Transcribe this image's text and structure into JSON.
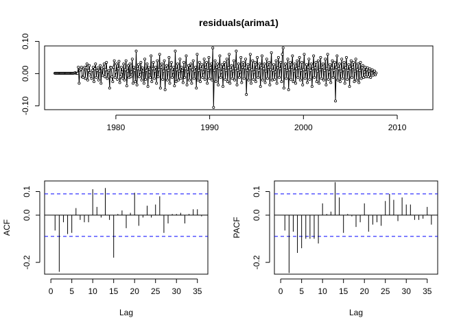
{
  "chart_data": [
    {
      "type": "line",
      "title": "residuals(arima1)",
      "xlabel": "",
      "ylabel": "",
      "xlim": [
        1972.4,
        2013.8
      ],
      "ylim": [
        -0.112,
        0.086
      ],
      "xticks": [
        1980,
        1990,
        2000,
        2010
      ],
      "yticks": [
        -0.1,
        0,
        0.1
      ],
      "ytick_labels": [
        "-0.10",
        "0.00",
        "0.10"
      ],
      "start": 1973.5,
      "frequency": 12,
      "line_color": "#000000",
      "marker": "open-circle",
      "box": true,
      "values": [
        0.001,
        0.001,
        0.001,
        0.001,
        0.001,
        0.001,
        0.001,
        0.001,
        0.001,
        0.001,
        0.001,
        0.001,
        0.001,
        0.001,
        0.001,
        0.001,
        0.001,
        0.001,
        0.001,
        0.001,
        0.001,
        0.001,
        0.001,
        0.001,
        0.001,
        0.002,
        0.003,
        0.001,
        0.001,
        0.001,
        0.02,
        -0.03,
        0.01,
        0.014,
        0.02,
        -0.01,
        -0.012,
        0.015,
        0.02,
        -0.015,
        0.018,
        0.03,
        -0.02,
        0.01,
        0.025,
        0.003,
        -0.008,
        -0.015,
        0.01,
        0.02,
        -0.025,
        0.015,
        0.03,
        -0.012,
        0.01,
        0.018,
        -0.02,
        0.008,
        0.025,
        -0.03,
        0.015,
        -0.005,
        0.02,
        0.03,
        -0.01,
        0.012,
        0.035,
        -0.015,
        0.005,
        0.01,
        -0.045,
        0.02,
        0.018,
        -0.01,
        -0.025,
        0.02,
        0.04,
        -0.012,
        0.005,
        0.03,
        -0.018,
        0.015,
        0.038,
        -0.028,
        -0.01,
        0.02,
        0.005,
        -0.015,
        0.03,
        -0.02,
        0.012,
        0.04,
        -0.038,
        0.008,
        0.025,
        -0.012,
        0.03,
        -0.01,
        0.005,
        0.045,
        -0.03,
        0.02,
        0.01,
        -0.025,
        0.07,
        -0.035,
        0.015,
        0.028,
        -0.01,
        0.005,
        0.035,
        -0.02,
        0.018,
        0.008,
        -0.03,
        0.045,
        -0.018,
        0.01,
        0.03,
        -0.04,
        0.02,
        0.005,
        -0.012,
        0.055,
        -0.025,
        0.015,
        0.035,
        -0.015,
        0.008,
        0.02,
        -0.03,
        0.04,
        -0.01,
        0.012,
        0.06,
        -0.045,
        0.02,
        0.03,
        -0.018,
        0.008,
        0.04,
        -0.05,
        0.015,
        0.025,
        -0.02,
        0.01,
        0.05,
        -0.03,
        0.018,
        0.035,
        -0.012,
        0.005,
        0.02,
        -0.038,
        0.07,
        -0.025,
        0.012,
        0.03,
        -0.02,
        0.008,
        0.045,
        -0.015,
        0.02,
        0.01,
        -0.028,
        0.035,
        -0.012,
        0.015,
        0.055,
        -0.035,
        0.005,
        0.025,
        -0.02,
        0.018,
        0.03,
        -0.03,
        0.012,
        0.04,
        -0.015,
        0.008,
        0.02,
        -0.045,
        0.06,
        -0.02,
        0.01,
        0.035,
        -0.025,
        0.015,
        0.028,
        -0.012,
        0.005,
        0.045,
        -0.018,
        0.02,
        0.035,
        -0.03,
        0.01,
        0.05,
        -0.015,
        0.018,
        0.03,
        -0.02,
        0.08,
        -0.105,
        0.01,
        0.04,
        -0.025,
        0.02,
        0.03,
        -0.035,
        0.015,
        0.055,
        -0.012,
        0.005,
        0.028,
        -0.04,
        0.02,
        0.035,
        -0.018,
        0.01,
        0.045,
        -0.025,
        0.018,
        0.06,
        -0.03,
        0.012,
        0.025,
        -0.015,
        0.008,
        0.04,
        -0.02,
        0.015,
        0.07,
        -0.035,
        0.01,
        0.03,
        -0.012,
        0.005,
        0.05,
        -0.028,
        0.02,
        0.035,
        -0.015,
        0.018,
        0.045,
        -0.065,
        0.01,
        0.028,
        -0.02,
        0.015,
        0.06,
        -0.03,
        0.012,
        0.04,
        -0.018,
        0.005,
        0.035,
        -0.025,
        0.02,
        0.05,
        -0.012,
        0.01,
        0.03,
        -0.04,
        0.018,
        0.055,
        -0.02,
        0.015,
        0.03,
        -0.028,
        0.008,
        0.045,
        -0.015,
        0.02,
        0.035,
        -0.035,
        0.012,
        0.065,
        -0.02,
        0.01,
        0.028,
        -0.018,
        0.005,
        0.04,
        -0.03,
        0.018,
        0.05,
        -0.012,
        0.015,
        0.035,
        -0.025,
        0.06,
        0.08,
        -0.045,
        0.02,
        0.03,
        -0.015,
        0.01,
        0.045,
        -0.05,
        0.012,
        0.035,
        -0.018,
        0.02,
        0.055,
        -0.025,
        0.008,
        0.03,
        -0.03,
        0.015,
        0.04,
        -0.012,
        0.018,
        0.05,
        -0.02,
        0.01,
        0.035,
        -0.035,
        0.012,
        0.06,
        -0.015,
        0.005,
        0.028,
        -0.028,
        0.02,
        0.045,
        -0.018,
        0.01,
        0.03,
        -0.04,
        0.015,
        0.055,
        -0.012,
        0.018,
        0.035,
        -0.025,
        0.008,
        0.04,
        -0.03,
        0.012,
        0.05,
        -0.015,
        0.02,
        0.03,
        -0.02,
        0.01,
        0.045,
        -0.035,
        0.015,
        0.06,
        -0.018,
        0.005,
        0.028,
        -0.028,
        0.018,
        0.04,
        -0.012,
        0.01,
        0.035,
        -0.085,
        0.02,
        0.055,
        -0.02,
        0.015,
        0.03,
        -0.025,
        0.008,
        0.045,
        -0.015,
        0.012,
        0.035,
        -0.03,
        0.018,
        0.05,
        -0.018,
        0.01,
        0.028,
        -0.04,
        0.015,
        0.04,
        -0.012,
        0.02,
        0.035,
        -0.025,
        0.008,
        0.045,
        -0.02,
        0.012,
        0.03,
        -0.028,
        0.01,
        0.035,
        -0.015,
        0.018,
        0.025,
        -0.012,
        0.005,
        0.02,
        -0.01,
        0.012,
        0.018,
        -0.01,
        0.008,
        0.015,
        -0.012,
        0.01,
        0.012,
        -0.005,
        0.006,
        0.008,
        -0.004,
        0.002
      ]
    },
    {
      "type": "bar",
      "title": "",
      "xlabel": "Lag",
      "ylabel": "ACF",
      "xlim": [
        -1.5,
        37.5
      ],
      "ylim": [
        -0.25,
        0.145
      ],
      "xticks": [
        0,
        5,
        10,
        15,
        20,
        25,
        30,
        35
      ],
      "yticks": [
        -0.2,
        0.0,
        0.1
      ],
      "ytick_labels": [
        "-0.2",
        "0.0",
        "0.1"
      ],
      "ci_bounds": [
        0.09,
        -0.09
      ],
      "ci_color": "#0000ff",
      "lags": [
        1,
        2,
        3,
        4,
        5,
        6,
        7,
        8,
        9,
        10,
        11,
        12,
        13,
        14,
        15,
        16,
        17,
        18,
        19,
        20,
        21,
        22,
        23,
        24,
        25,
        26,
        27,
        28,
        29,
        30,
        31,
        32,
        33,
        34,
        35,
        36
      ],
      "values": [
        -0.065,
        -0.24,
        -0.03,
        -0.08,
        -0.075,
        0.03,
        -0.02,
        -0.03,
        -0.03,
        0.11,
        0.035,
        -0.01,
        0.115,
        -0.02,
        -0.18,
        0.005,
        0.02,
        -0.055,
        0.01,
        0.095,
        -0.045,
        -0.01,
        0.04,
        -0.01,
        0.045,
        0.08,
        -0.075,
        -0.035,
        0.005,
        0.005,
        0.01,
        -0.035,
        0.005,
        0.025,
        0.025,
        -0.005
      ]
    },
    {
      "type": "bar",
      "title": "",
      "xlabel": "Lag",
      "ylabel": "PACF",
      "xlim": [
        -1.5,
        37.5
      ],
      "ylim": [
        -0.25,
        0.145
      ],
      "xticks": [
        0,
        5,
        10,
        15,
        20,
        25,
        30,
        35
      ],
      "yticks": [
        -0.2,
        0.0,
        0.1
      ],
      "ytick_labels": [
        "-0.2",
        "0.0",
        "0.1"
      ],
      "ci_bounds": [
        0.09,
        -0.09
      ],
      "ci_color": "#0000ff",
      "lags": [
        1,
        2,
        3,
        4,
        5,
        6,
        7,
        8,
        9,
        10,
        11,
        12,
        13,
        14,
        15,
        16,
        17,
        18,
        19,
        20,
        21,
        22,
        23,
        24,
        25,
        26,
        27,
        28,
        29,
        30,
        31,
        32,
        33,
        34,
        35,
        36
      ],
      "values": [
        -0.065,
        -0.245,
        -0.07,
        -0.16,
        -0.14,
        -0.1,
        -0.1,
        -0.1,
        -0.12,
        0.05,
        0.005,
        0.015,
        0.14,
        0.075,
        -0.075,
        0.005,
        -0.005,
        -0.05,
        -0.03,
        0.05,
        -0.07,
        -0.04,
        -0.03,
        -0.045,
        0.06,
        0.09,
        0.065,
        -0.025,
        0.075,
        0.045,
        0.045,
        -0.02,
        -0.02,
        -0.015,
        0.035,
        -0.04
      ]
    }
  ]
}
